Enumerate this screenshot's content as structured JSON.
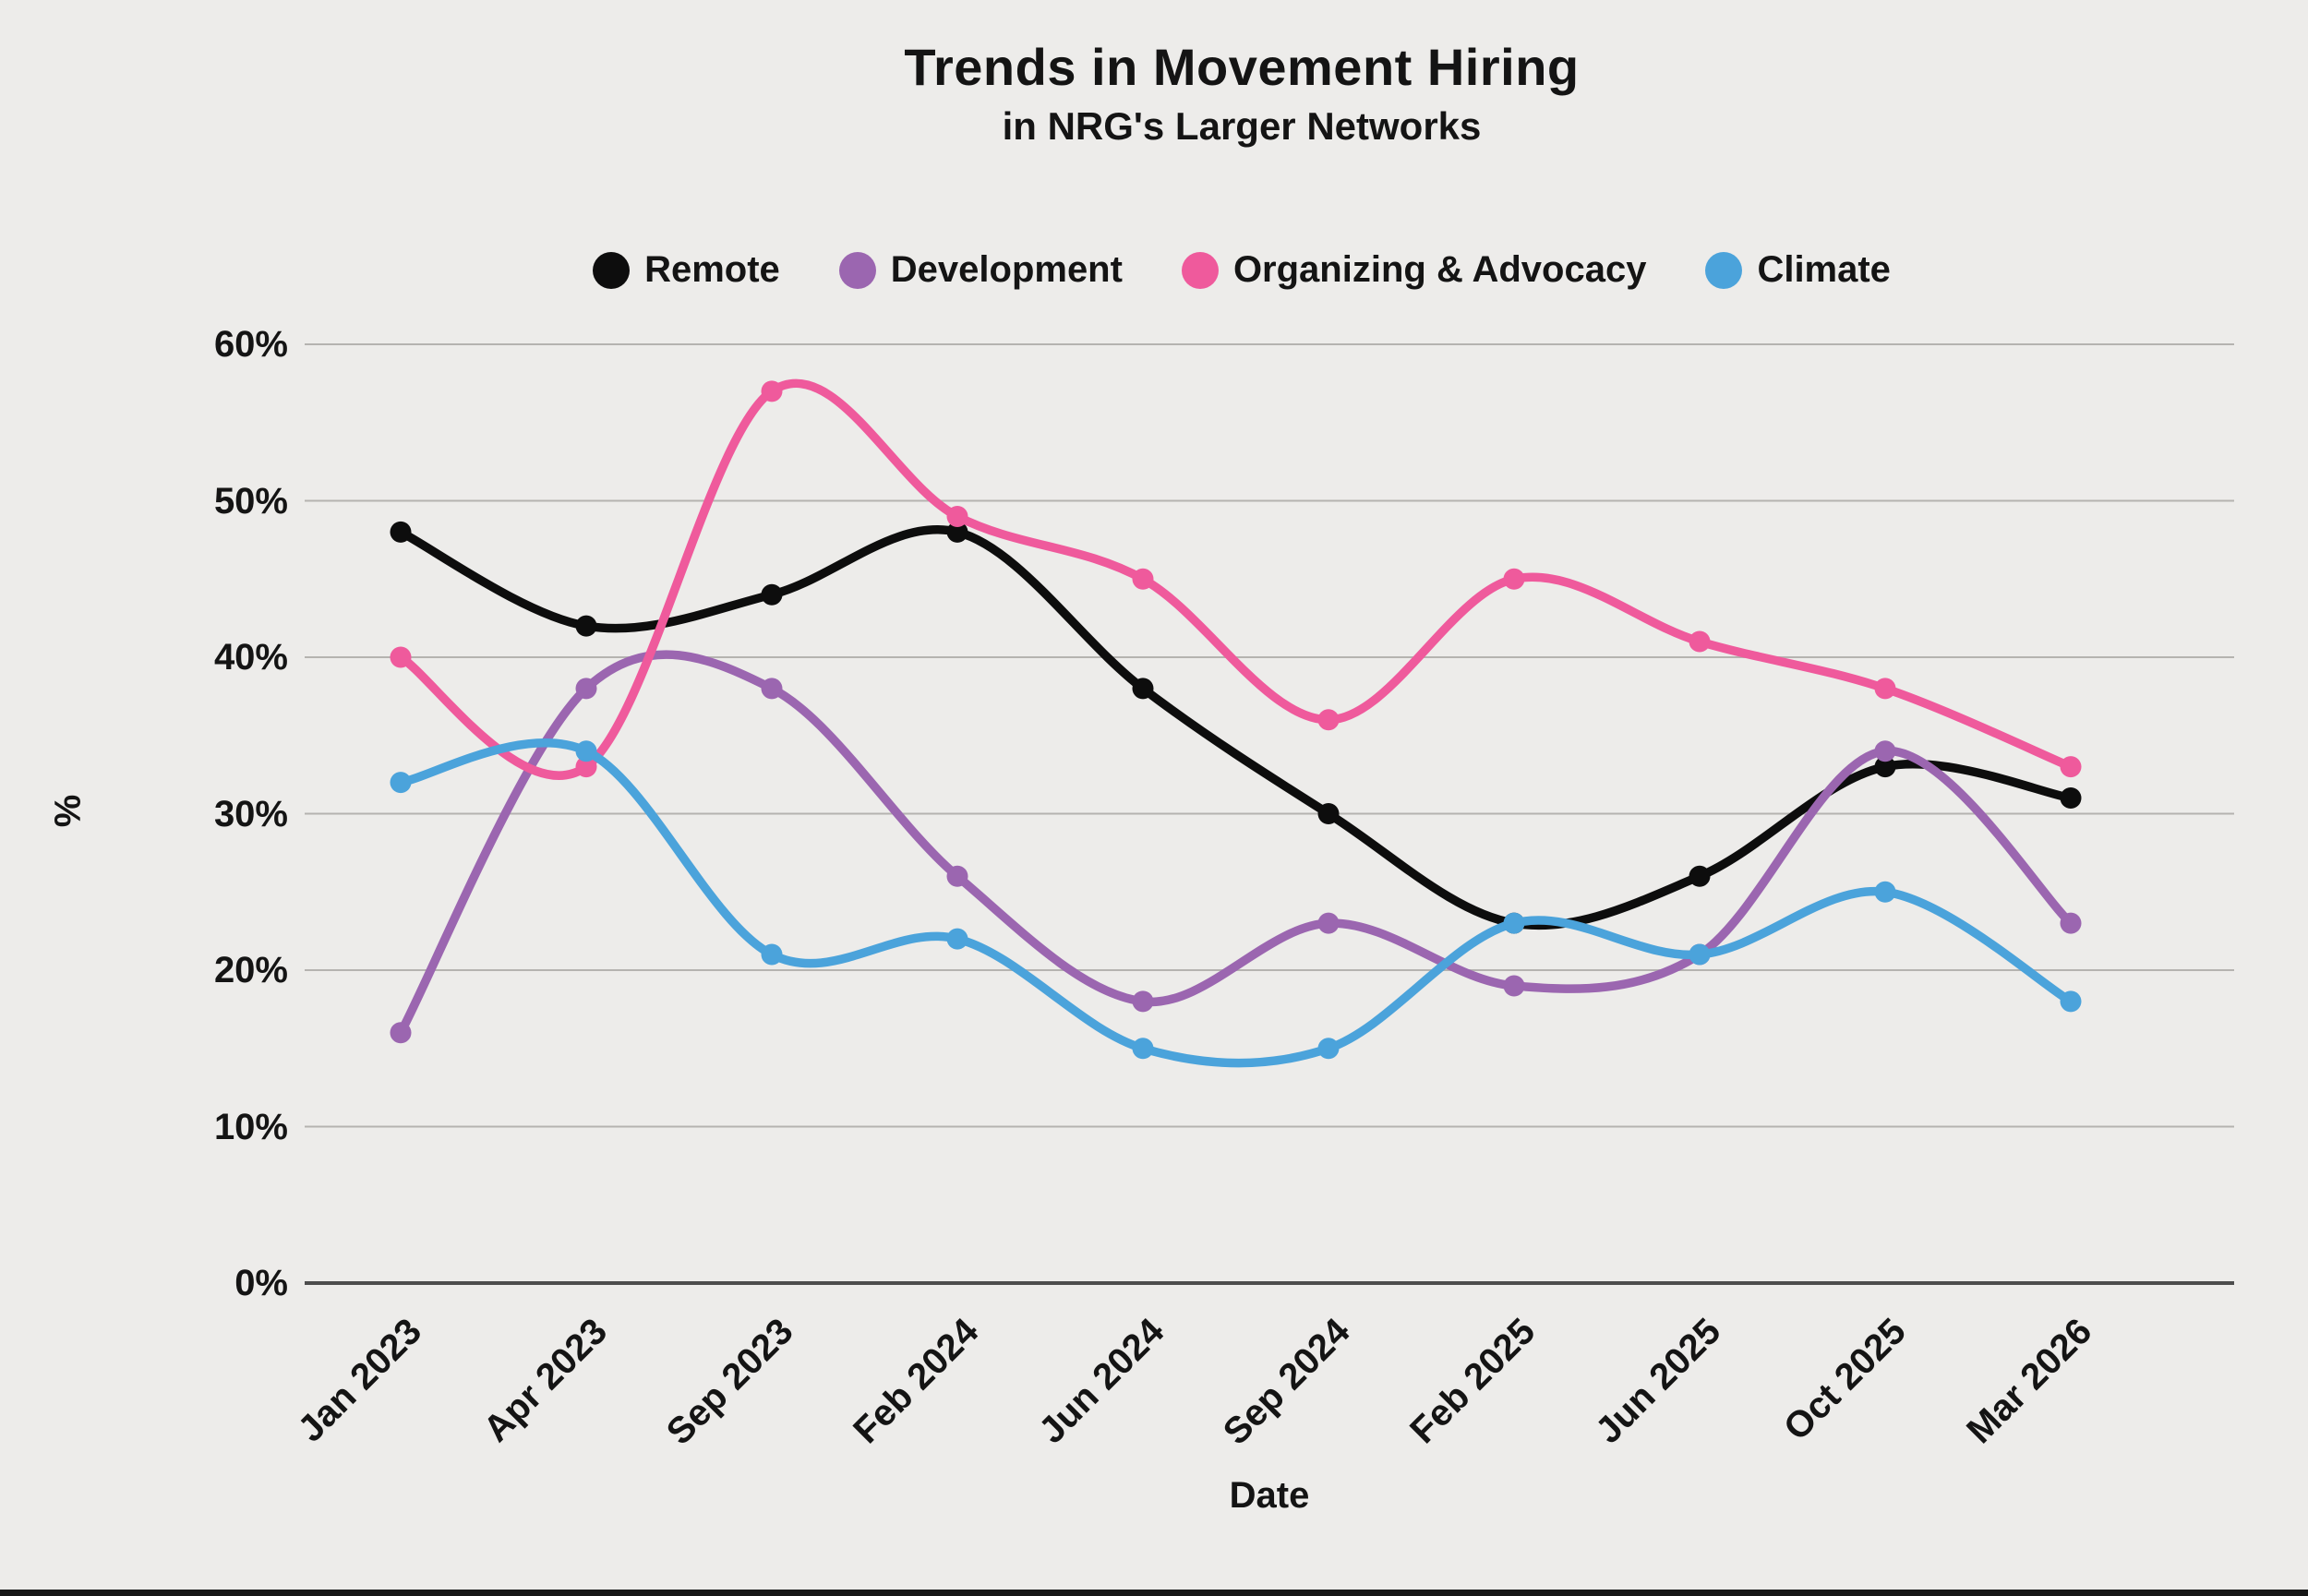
{
  "header": {
    "title": "Trends in Movement Hiring",
    "subtitle": "in NRG's Larger Networks"
  },
  "colors": {
    "background": "#EDECEA",
    "gridline": "#B5B3B0",
    "zero_axis_line": "#4D4D4D",
    "text": "#141414",
    "bottom_border": "#161616"
  },
  "chart_data": {
    "type": "line",
    "title": "Trends in Movement Hiring",
    "subtitle": "in NRG's Larger Networks",
    "xlabel": "Date",
    "ylabel": "%",
    "ylim": [
      0,
      60
    ],
    "y_ticks": [
      0,
      10,
      20,
      30,
      40,
      50,
      60
    ],
    "y_tick_suffix": "%",
    "grid": true,
    "legend_position": "top",
    "categories": [
      "Jan 2023",
      "Apr 2023",
      "Sep 2023",
      "Feb 2024",
      "Jun 2024",
      "Sep 2024",
      "Feb 2025",
      "Jun 2025",
      "Oct 2025",
      "Mar 2026"
    ],
    "series": [
      {
        "name": "Remote",
        "color": "#0D0D0D",
        "values": [
          48,
          42,
          44,
          48,
          38,
          30,
          23,
          26,
          33,
          31
        ]
      },
      {
        "name": "Development",
        "color": "#9B66B0",
        "values": [
          16,
          38,
          38,
          26,
          18,
          23,
          19,
          21,
          34,
          23
        ]
      },
      {
        "name": "Organizing & Advocacy",
        "color": "#EF5A9C",
        "values": [
          40,
          33,
          57,
          49,
          45,
          36,
          45,
          41,
          38,
          33
        ]
      },
      {
        "name": "Climate",
        "color": "#4BA3DB",
        "values": [
          32,
          34,
          21,
          22,
          15,
          15,
          23,
          21,
          25,
          18
        ]
      }
    ]
  }
}
